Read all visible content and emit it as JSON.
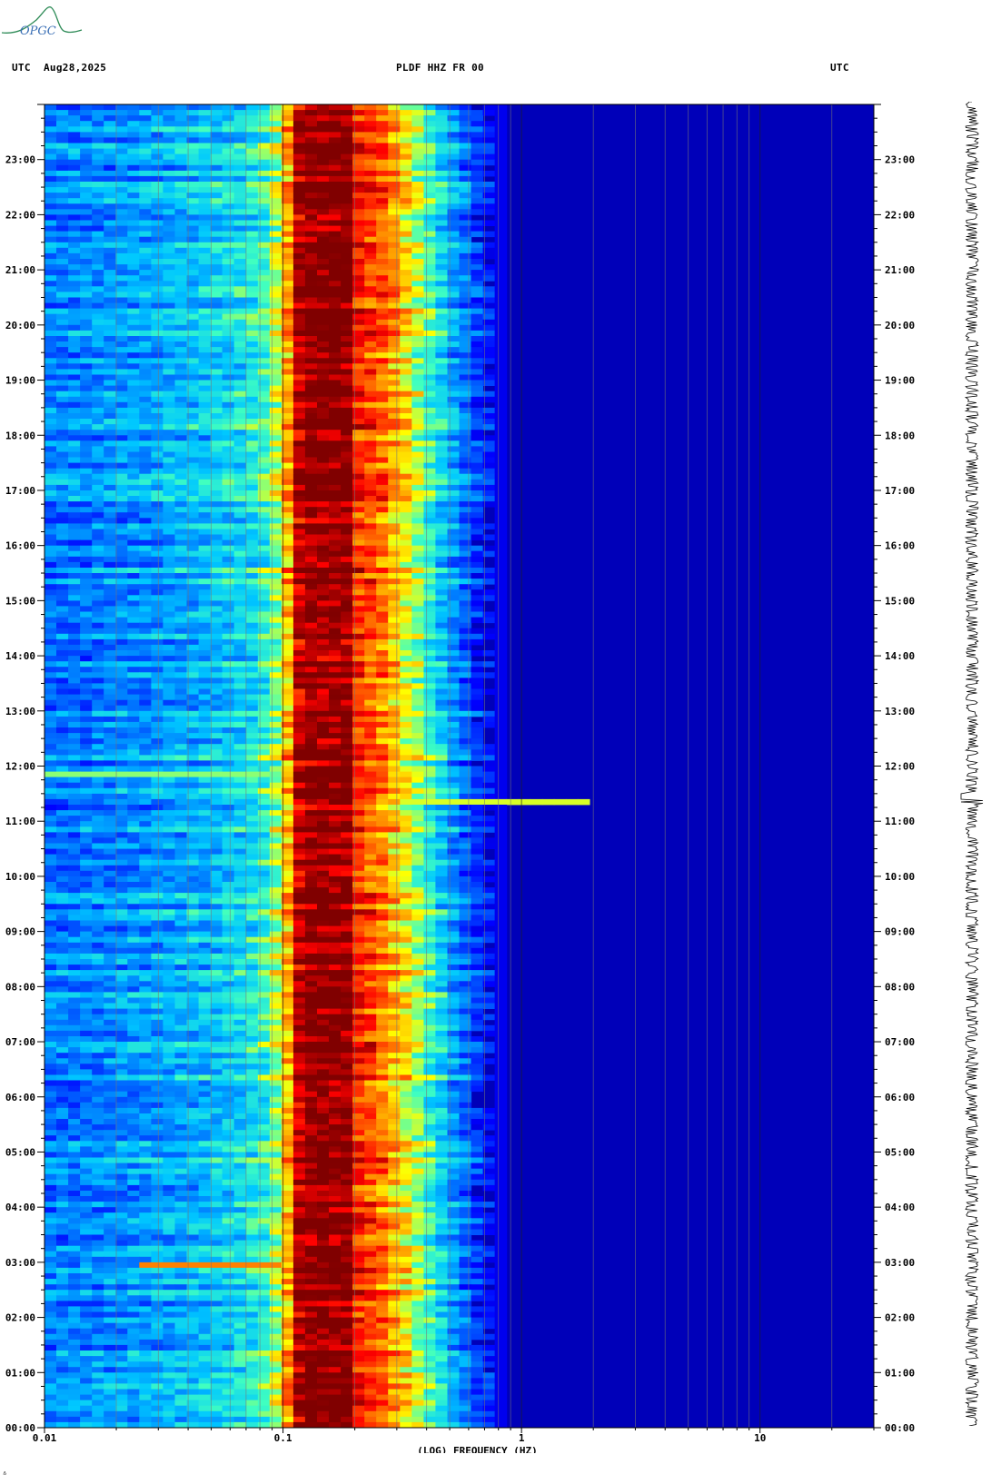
{
  "header": {
    "left_tz": "UTC",
    "date": "Aug28,2025",
    "station": "PLDF HHZ FR 00",
    "right_tz": "UTC"
  },
  "logo": {
    "text": "OPGC",
    "color": "#2e8b57"
  },
  "chart_data": {
    "type": "heatmap",
    "title": "PLDF HHZ FR 00",
    "xlabel": "(LOG) FREQUENCY (HZ)",
    "ylabel": "",
    "x_scale": "log",
    "xlim": [
      0.01,
      30
    ],
    "x_ticks": [
      0.01,
      0.1,
      1,
      10
    ],
    "x_tick_labels": [
      "0.01",
      "0.1",
      "1",
      "10"
    ],
    "ylim_hours": [
      0,
      24
    ],
    "y_tick_labels": [
      "00:00",
      "01:00",
      "02:00",
      "03:00",
      "04:00",
      "05:00",
      "06:00",
      "07:00",
      "08:00",
      "09:00",
      "10:00",
      "11:00",
      "12:00",
      "13:00",
      "14:00",
      "15:00",
      "16:00",
      "17:00",
      "18:00",
      "19:00",
      "20:00",
      "21:00",
      "22:00",
      "23:00"
    ],
    "colormap": [
      "#00008b",
      "#0000ff",
      "#0064ff",
      "#00c8ff",
      "#40ffc0",
      "#ffff00",
      "#ff8000",
      "#ff0000",
      "#800000"
    ],
    "spectral_profile": [
      {
        "f": 0.01,
        "level": 0.28
      },
      {
        "f": 0.025,
        "level": 0.32
      },
      {
        "f": 0.05,
        "level": 0.38
      },
      {
        "f": 0.08,
        "level": 0.45
      },
      {
        "f": 0.1,
        "level": 0.62
      },
      {
        "f": 0.12,
        "level": 1.0
      },
      {
        "f": 0.19,
        "level": 1.0
      },
      {
        "f": 0.2,
        "level": 0.85
      },
      {
        "f": 0.25,
        "level": 0.8
      },
      {
        "f": 0.35,
        "level": 0.6
      },
      {
        "f": 0.5,
        "level": 0.35
      },
      {
        "f": 0.7,
        "level": 0.15
      },
      {
        "f": 1.0,
        "level": 0.05
      },
      {
        "f": 30,
        "level": 0.02
      }
    ],
    "events": [
      {
        "time_h": 11.35,
        "f_min": 0.2,
        "f_max": 2.0,
        "level": 0.6
      },
      {
        "time_h": 2.95,
        "f_min": 0.025,
        "f_max": 0.1,
        "level": 0.75
      },
      {
        "time_h": 11.85,
        "f_min": 0.01,
        "f_max": 0.09,
        "level": 0.55
      }
    ]
  },
  "right_panel": {
    "trace": "seismogram"
  },
  "corner_mark": "ᐞ"
}
